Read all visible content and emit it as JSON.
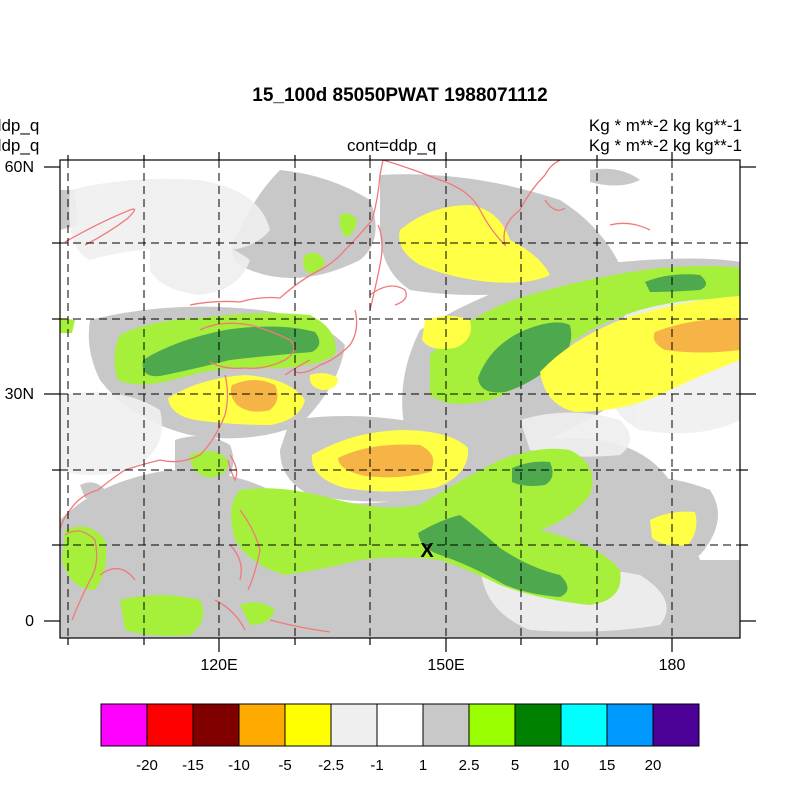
{
  "map": {
    "title": "15_100d 85050PWAT  1988071112",
    "left_label_1": "ddp_q",
    "left_label_2": "ddp_q",
    "center_label": "cont=ddp_q",
    "right_label_1": "Kg   * m**-2 kg kg**-1",
    "right_label_2": "Kg   * m**-2 kg kg**-1",
    "marker": "X",
    "lat_labels": [
      "60N",
      "30N",
      "0"
    ],
    "lon_labels": [
      "120E",
      "150E",
      "180"
    ]
  },
  "colorbar": {
    "colors": [
      "#ff00ff",
      "#ff0000",
      "#800000",
      "#ffaa00",
      "#ffff00",
      "#efefef",
      "#ffffff",
      "#c8c8c8",
      "#99ff00",
      "#008000",
      "#00ffff",
      "#0099ff",
      "#4b0096"
    ],
    "labels": [
      "-20",
      "-15",
      "-10",
      "-5",
      "-2.5",
      "-1",
      "1",
      "2.5",
      "5",
      "10",
      "15",
      "20"
    ]
  },
  "colors": {
    "coast": "#f07a7a",
    "grey_light": "#efefef",
    "grey": "#c8c8c8",
    "lightgreen": "#a6f03c",
    "darkgreen": "#4ea84e",
    "yellow": "#ffff46",
    "orange": "#f6b446"
  }
}
